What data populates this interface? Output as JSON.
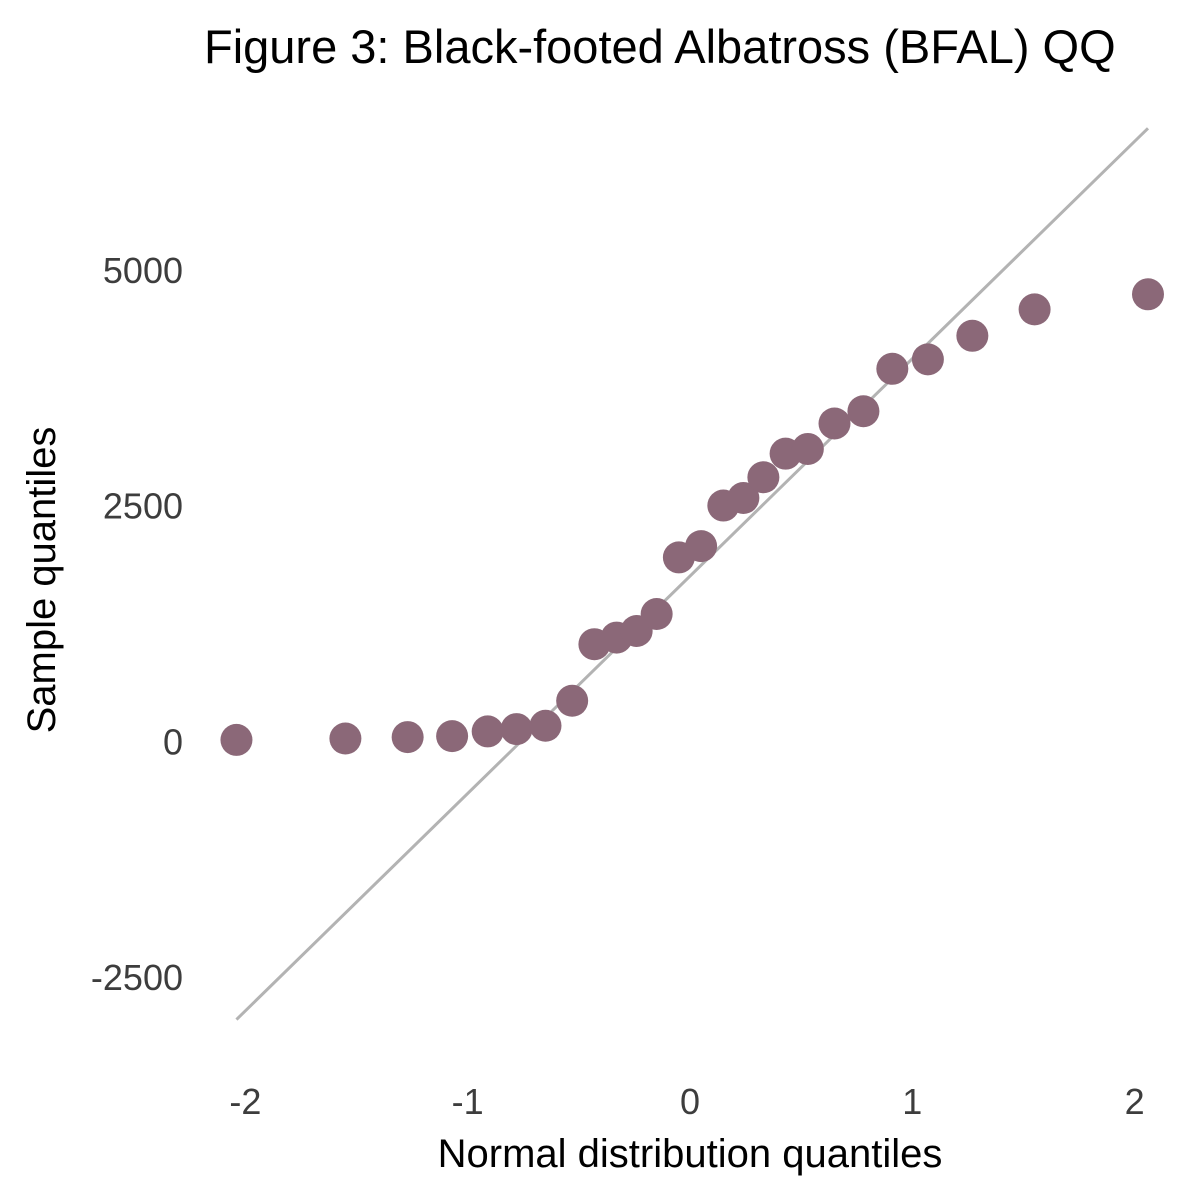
{
  "chart_data": {
    "type": "scatter",
    "title": "Figure 3: Black-footed Albatross (BFAL) QQ",
    "xlabel": "Normal distribution quantiles",
    "ylabel": "Sample quantiles",
    "xlim": [
      -2.15,
      2.15
    ],
    "ylim": [
      -3400,
      6800
    ],
    "x_ticks": [
      -2,
      -1,
      0,
      1,
      2
    ],
    "x_tick_labels": [
      "-2",
      "-1",
      "0",
      "1",
      "2"
    ],
    "y_ticks": [
      -2500,
      0,
      2500,
      5000
    ],
    "y_tick_labels": [
      "-2500",
      "0",
      "2500",
      "5000"
    ],
    "grid": false,
    "point_color": "#8b6878",
    "line_color": "#b3b3b3",
    "reference_line": {
      "x": [
        -2.04,
        2.06
      ],
      "y": [
        -2950,
        6500
      ]
    },
    "series": [
      {
        "x": [
          -2.04,
          -1.55,
          -1.27,
          -1.07,
          -0.91,
          -0.78,
          -0.65,
          -0.53,
          -0.43,
          -0.33,
          -0.24,
          -0.15,
          -0.05,
          0.05,
          0.15,
          0.24,
          0.33,
          0.43,
          0.53,
          0.65,
          0.78,
          0.91,
          1.07,
          1.27,
          1.55,
          2.06
        ],
        "y": [
          15,
          30,
          45,
          55,
          105,
          130,
          165,
          430,
          1030,
          1100,
          1170,
          1350,
          1950,
          2070,
          2500,
          2580,
          2800,
          3050,
          3100,
          3370,
          3500,
          3950,
          4050,
          4300,
          4580,
          4740
        ]
      }
    ]
  }
}
